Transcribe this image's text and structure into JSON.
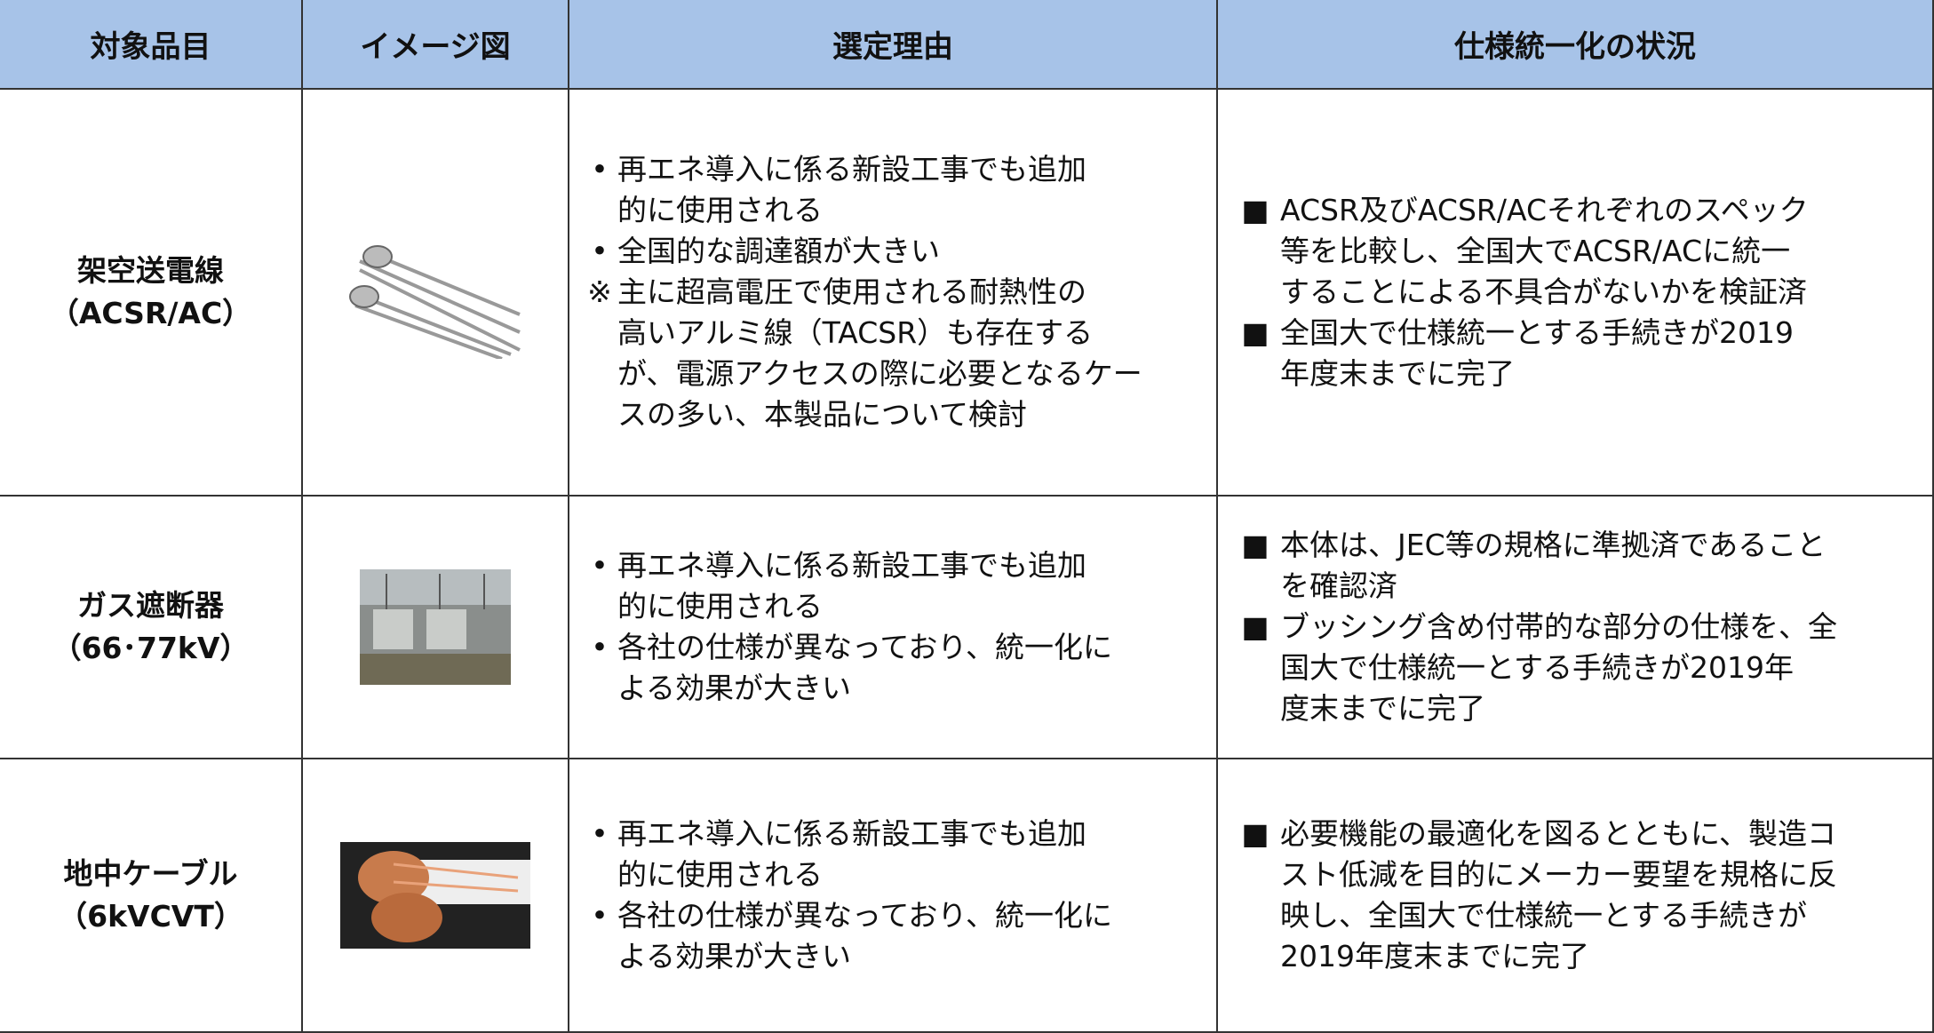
{
  "table": {
    "headers": [
      "対象品目",
      "イメージ図",
      "選定理由",
      "仕様統一化の状況"
    ],
    "rows": [
      {
        "item": [
          "架空送電線",
          "（ACSR/AC）"
        ],
        "reasons": [
          {
            "marker": "•",
            "lines": [
              "再エネ導入に係る新設工事でも追加",
              "的に使用される"
            ]
          },
          {
            "marker": "•",
            "lines": [
              "全国的な調達額が大きい"
            ]
          },
          {
            "marker": "※",
            "lines": [
              "主に超高電圧で使用される耐熱性の",
              "高いアルミ線（TACSR）も存在する",
              "が、電源アクセスの際に必要となるケー",
              "スの多い、本製品について検討"
            ]
          }
        ],
        "status": [
          {
            "marker": "■",
            "lines": [
              "ACSR及びACSR/ACそれぞれのスペック",
              "等を比較し、全国大でACSR/ACに統一",
              "することによる不具合がないかを検証済"
            ]
          },
          {
            "marker": "■",
            "lines": [
              "全国大で仕様統一とする手続きが2019",
              "年度末までに完了"
            ]
          }
        ]
      },
      {
        "item": [
          "ガス遮断器",
          "（66･77kV）"
        ],
        "reasons": [
          {
            "marker": "•",
            "lines": [
              "再エネ導入に係る新設工事でも追加",
              "的に使用される"
            ]
          },
          {
            "marker": "•",
            "lines": [
              "各社の仕様が異なっており、統一化に",
              "よる効果が大きい"
            ]
          }
        ],
        "status": [
          {
            "marker": "■",
            "lines": [
              "本体は、JEC等の規格に準拠済であること",
              "を確認済"
            ]
          },
          {
            "marker": "■",
            "lines": [
              "ブッシング含め付帯的な部分の仕様を、全",
              "国大で仕様統一とする手続きが2019年",
              "度末までに完了"
            ]
          }
        ]
      },
      {
        "item": [
          "地中ケーブル",
          "（6kVCVT）"
        ],
        "reasons": [
          {
            "marker": "•",
            "lines": [
              "再エネ導入に係る新設工事でも追加",
              "的に使用される"
            ]
          },
          {
            "marker": "•",
            "lines": [
              "各社の仕様が異なっており、統一化に",
              "よる効果が大きい"
            ]
          }
        ],
        "status": [
          {
            "marker": "■",
            "lines": [
              "必要機能の最適化を図るとともに、製造コ",
              "スト低減を目的にメーカー要望を規格に反",
              "映し、全国大で仕様統一とする手続きが",
              "2019年度末までに完了"
            ]
          }
        ]
      }
    ]
  }
}
